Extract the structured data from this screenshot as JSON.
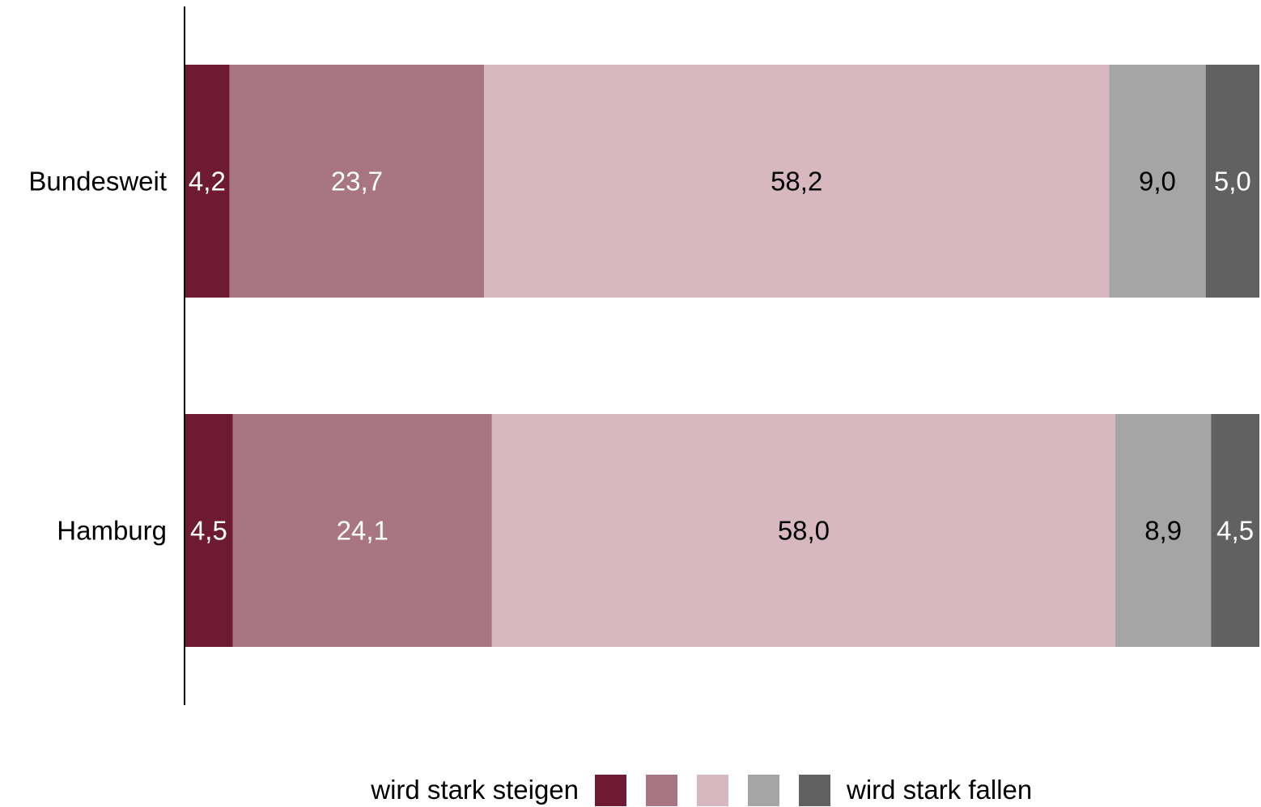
{
  "chart_data": {
    "type": "bar",
    "orientation": "horizontal",
    "stacked": true,
    "normalized_to": 100,
    "categories": [
      "Bundesweit",
      "Hamburg"
    ],
    "series": [
      {
        "values": [
          4.2,
          4.5
        ],
        "labels": [
          "4,2",
          "4,5"
        ],
        "color": "#6e1a32",
        "label_color": "#ffffff"
      },
      {
        "values": [
          23.7,
          24.1
        ],
        "labels": [
          "23,7",
          "24,1"
        ],
        "color": "#a87582",
        "label_color": "#ffffff"
      },
      {
        "values": [
          58.2,
          58.0
        ],
        "labels": [
          "58,2",
          "58,0"
        ],
        "color": "#d7b8c0",
        "label_color": "#000000"
      },
      {
        "values": [
          9.0,
          8.9
        ],
        "labels": [
          "9,0",
          "8,9"
        ],
        "color": "#a5a5a5",
        "label_color": "#000000"
      },
      {
        "values": [
          5.0,
          4.5
        ],
        "labels": [
          "5,0",
          "4,5"
        ],
        "color": "#616161",
        "label_color": "#ffffff"
      }
    ],
    "legend": {
      "left_label": "wird stark steigen",
      "right_label": "wird stark fallen",
      "placement": "bottom"
    },
    "grid": false,
    "title": "",
    "xlabel": "",
    "ylabel": ""
  }
}
